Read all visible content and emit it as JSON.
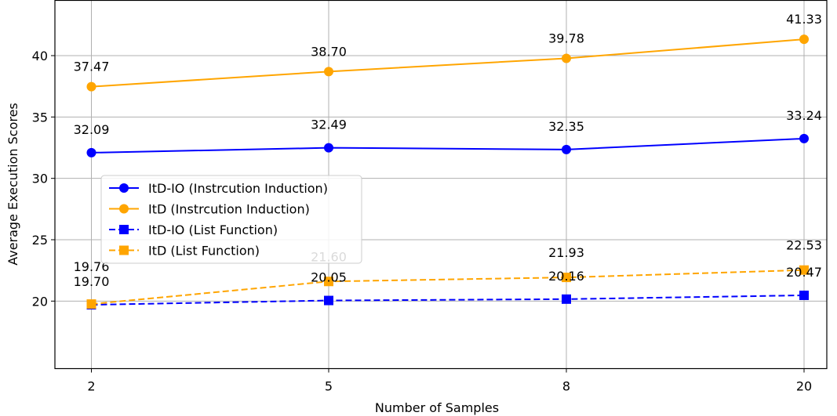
{
  "chart_data": {
    "type": "line",
    "xlabel": "Number of Samples",
    "ylabel": "Average Execution Scores",
    "categories": [
      "2",
      "5",
      "8",
      "20"
    ],
    "ylim": [
      14.5,
      44.5
    ],
    "yticks": [
      20,
      25,
      30,
      35,
      40
    ],
    "grid": true,
    "legend_position": "center-left",
    "series": [
      {
        "name": "ItD-IO (Instrcution Induction)",
        "color": "#0000ff",
        "linestyle": "solid",
        "marker": "circle",
        "values": [
          32.09,
          32.49,
          32.35,
          33.24
        ],
        "labels": [
          "32.09",
          "32.49",
          "32.35",
          "33.24"
        ]
      },
      {
        "name": "ItD (Instrcution Induction)",
        "color": "#ffa500",
        "linestyle": "solid",
        "marker": "circle",
        "values": [
          37.47,
          38.7,
          39.78,
          41.33
        ],
        "labels": [
          "37.47",
          "38.70",
          "39.78",
          "41.33"
        ]
      },
      {
        "name": "ItD-IO (List Function)",
        "color": "#0000ff",
        "linestyle": "dashed",
        "marker": "square",
        "values": [
          19.7,
          20.05,
          20.16,
          20.47
        ],
        "labels": [
          "19.70",
          "20.05",
          "20.16",
          "20.47"
        ]
      },
      {
        "name": "ItD (List Function)",
        "color": "#ffa500",
        "linestyle": "dashed",
        "marker": "square",
        "values": [
          19.76,
          21.6,
          21.93,
          22.53
        ],
        "labels": [
          "19.76",
          "21.60",
          "21.93",
          "22.53"
        ]
      }
    ]
  }
}
